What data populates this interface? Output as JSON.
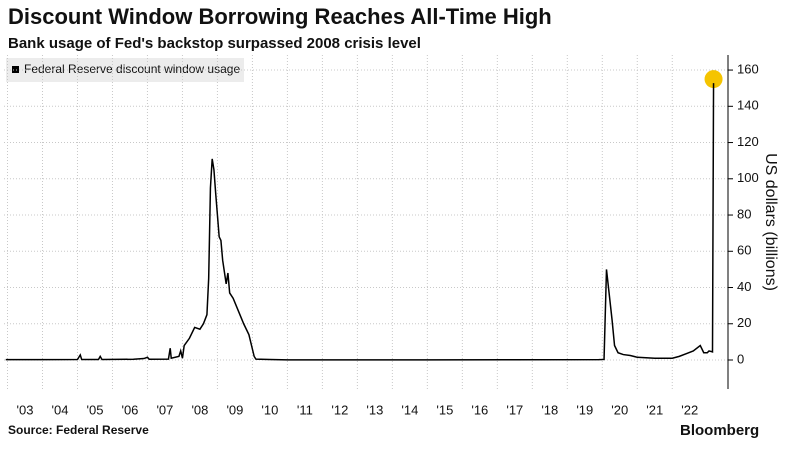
{
  "chart_data": {
    "type": "line",
    "title": "Discount Window Borrowing Reaches All-Time High",
    "subtitle": "Bank usage of Fed's backstop surpassed 2008 crisis level",
    "y_label": "US dollars (billions)",
    "source": "Source: Federal Reserve",
    "brand": "Bloomberg",
    "x": [
      2002.95,
      2004.0,
      2005.0,
      2005.08,
      2005.12,
      2005.6,
      2005.65,
      2005.7,
      2006.6,
      2006.9,
      2007.0,
      2007.05,
      2007.6,
      2007.65,
      2007.68,
      2007.9,
      2007.95,
      2008.0,
      2008.05,
      2008.2,
      2008.35,
      2008.5,
      2008.6,
      2008.7,
      2008.75,
      2008.8,
      2008.85,
      2008.9,
      2008.95,
      2009.0,
      2009.05,
      2009.1,
      2009.15,
      2009.25,
      2009.3,
      2009.35,
      2009.45,
      2009.6,
      2009.75,
      2009.9,
      2010.0,
      2010.05,
      2010.1,
      2010.5,
      2011.0,
      2015.0,
      2019.9,
      2020.05,
      2020.12,
      2020.2,
      2020.28,
      2020.35,
      2020.45,
      2020.6,
      2020.8,
      2021.0,
      2021.5,
      2022.0,
      2022.2,
      2022.4,
      2022.6,
      2022.8,
      2022.9,
      2023.0,
      2023.05,
      2023.15,
      2023.18
    ],
    "series": [
      {
        "name": "Federal Reserve discount window usage",
        "color": "#000000",
        "values": [
          0.2,
          0.2,
          0.3,
          2.8,
          0.3,
          0.3,
          2,
          0.3,
          0.4,
          0.8,
          1.5,
          0.4,
          0.5,
          6.5,
          1,
          2,
          5,
          1,
          8,
          12,
          18,
          17,
          20,
          25,
          45,
          95,
          111,
          105,
          92,
          80,
          68,
          66,
          55,
          42,
          48,
          37,
          34,
          27,
          20,
          14,
          6,
          2,
          0.5,
          0.3,
          0.1,
          0.1,
          0.2,
          0.3,
          50,
          36,
          22,
          8,
          4,
          3,
          2.5,
          1.5,
          1,
          1,
          2,
          3.5,
          5,
          8,
          4,
          4,
          5,
          4.5,
          152.8
        ]
      }
    ],
    "highlight_color": "#f5c400",
    "xlim": [
      2002.9,
      2023.25
    ],
    "xticks": [
      {
        "value": 2003,
        "label": "'03"
      },
      {
        "value": 2004,
        "label": "'04"
      },
      {
        "value": 2005,
        "label": "'05"
      },
      {
        "value": 2006,
        "label": "'06"
      },
      {
        "value": 2007,
        "label": "'07"
      },
      {
        "value": 2008,
        "label": "'08"
      },
      {
        "value": 2009,
        "label": "'09"
      },
      {
        "value": 2010,
        "label": "'10"
      },
      {
        "value": 2011,
        "label": "'11"
      },
      {
        "value": 2012,
        "label": "'12"
      },
      {
        "value": 2013,
        "label": "'13"
      },
      {
        "value": 2014,
        "label": "'14"
      },
      {
        "value": 2015,
        "label": "'15"
      },
      {
        "value": 2016,
        "label": "'16"
      },
      {
        "value": 2017,
        "label": "'17"
      },
      {
        "value": 2018,
        "label": "'18"
      },
      {
        "value": 2019,
        "label": "'19"
      },
      {
        "value": 2020,
        "label": "'20"
      },
      {
        "value": 2021,
        "label": "'21"
      },
      {
        "value": 2022,
        "label": "'22"
      }
    ],
    "ylim": [
      -16,
      165
    ],
    "yticks": [
      0,
      20,
      40,
      60,
      80,
      100,
      120,
      140,
      160
    ],
    "grid": true
  }
}
